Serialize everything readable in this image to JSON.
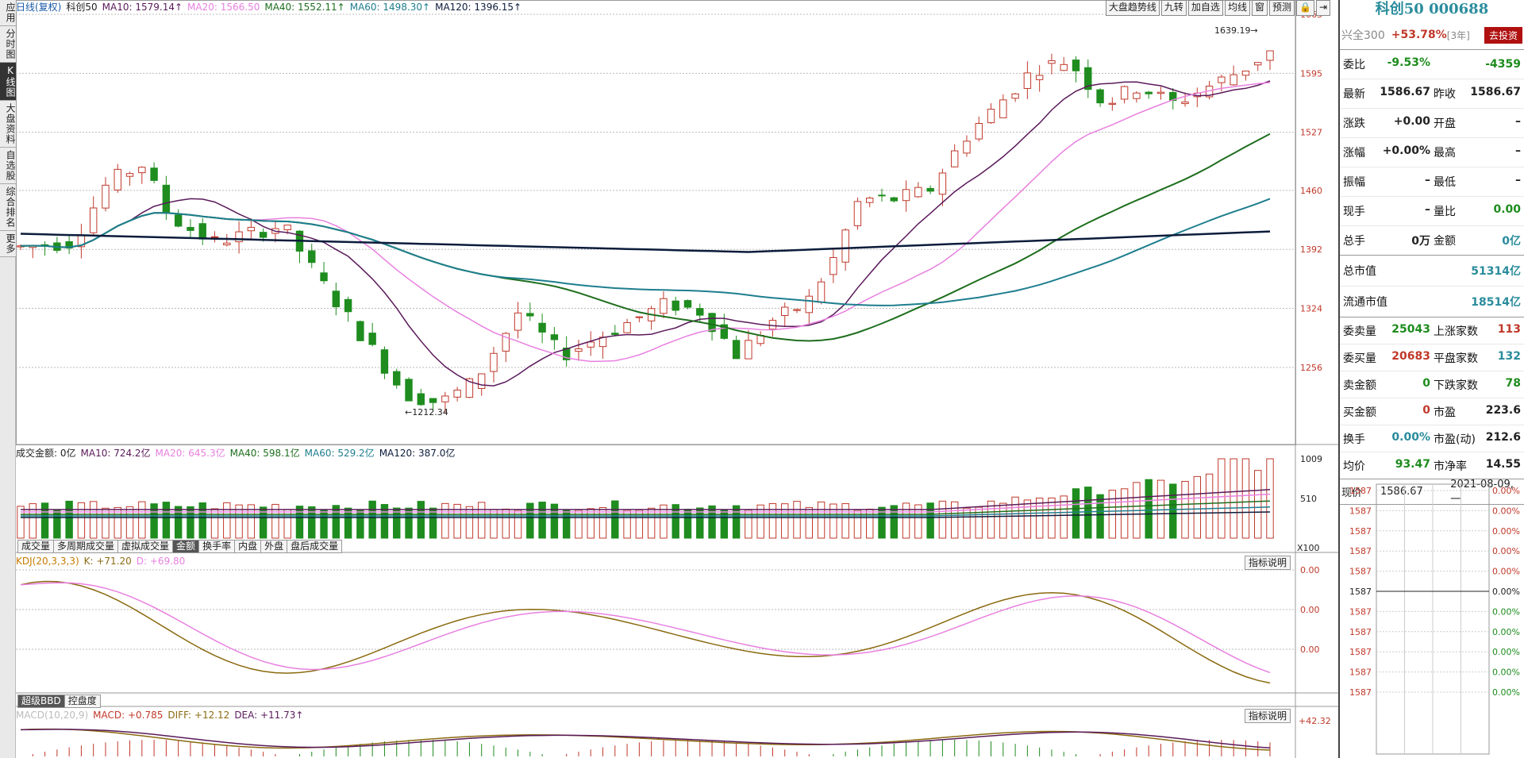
{
  "leftnav": [
    {
      "label": "应用",
      "active": false
    },
    {
      "label": "分时图",
      "active": false
    },
    {
      "label": "K线图",
      "active": true
    },
    {
      "label": "大盘资料",
      "active": false
    },
    {
      "label": "自选股",
      "active": false
    },
    {
      "label": "综合排名",
      "active": false
    },
    {
      "label": "更多",
      "active": false
    }
  ],
  "main_legend": {
    "period": "日线(复权)",
    "name": "科创50",
    "ma10": "MA10: 1579.14↑",
    "ma20": "MA20: 1566.50",
    "ma40": "MA40: 1552.11↑",
    "ma60": "MA60: 1498.30↑",
    "ma120": "MA120: 1396.15↑"
  },
  "toolbar": [
    "大盘趋势线",
    "九转",
    "加自选",
    "均线",
    "窗",
    "预测"
  ],
  "price_axis": [
    "1663",
    "1595",
    "1527",
    "1460",
    "1392",
    "1324",
    "1256"
  ],
  "annotations": {
    "high": "1639.19",
    "low": "1212.34"
  },
  "volume_legend": {
    "label": "成交金额: 0亿",
    "ma10": "MA10: 724.2亿",
    "ma20": "MA20: 645.3亿",
    "ma40": "MA40: 598.1亿",
    "ma60": "MA60: 529.2亿",
    "ma120": "MA120: 387.0亿"
  },
  "volume_axis": [
    "1009",
    "510"
  ],
  "volume_unit": "X100",
  "volume_tabs": [
    {
      "label": "成交量",
      "active": false
    },
    {
      "label": "多周期成交量",
      "active": false
    },
    {
      "label": "虚拟成交量",
      "active": false
    },
    {
      "label": "金额",
      "active": true
    },
    {
      "label": "换手率",
      "active": false
    },
    {
      "label": "内盘",
      "active": false
    },
    {
      "label": "外盘",
      "active": false
    },
    {
      "label": "盘后成交量",
      "active": false
    }
  ],
  "kdj_legend": {
    "label": "KDJ(20,3,3,3)",
    "k": "K: +71.20",
    "d": "D: +69.80"
  },
  "kdj_axis": [
    "0.00",
    "0.00",
    "0.00"
  ],
  "explain_label": "指标说明",
  "kdj_tabs": [
    {
      "label": "超级BBD",
      "active": true
    },
    {
      "label": "控盘度",
      "active": false
    }
  ],
  "macd_legend": {
    "label": "MACD(10,20,9)",
    "macd": "MACD: +0.785",
    "diff": "DIFF: +12.12",
    "dea": "DEA: +11.73↑"
  },
  "macd_axis": "+42.32",
  "colors": {
    "up": "#c0392b",
    "down": "#1e8c1e",
    "ma10": "#5a1a5a",
    "ma20": "#e880e0",
    "ma40": "#1e6e1e",
    "ma60": "#1e7e8e",
    "ma120": "#0c1c3c"
  },
  "panel": {
    "title": "科创50 000688",
    "row0": {
      "l1": "兴全300",
      "v1": "+53.78%",
      "v1b": "[3年]",
      "btn": "去投资"
    },
    "rows": [
      {
        "l1": "委比",
        "v1": "-9.53%",
        "c1": "green",
        "l2": "",
        "v2": "-4359",
        "c2": "green"
      },
      {
        "l1": "最新",
        "v1": "1586.67",
        "c1": "",
        "l2": "昨收",
        "v2": "1586.67",
        "c2": ""
      },
      {
        "l1": "涨跌",
        "v1": "+0.00",
        "c1": "",
        "l2": "开盘",
        "v2": "–",
        "c2": ""
      },
      {
        "l1": "涨幅",
        "v1": "+0.00%",
        "c1": "",
        "l2": "最高",
        "v2": "–",
        "c2": ""
      },
      {
        "l1": "振幅",
        "v1": "–",
        "c1": "",
        "l2": "最低",
        "v2": "–",
        "c2": ""
      },
      {
        "l1": "现手",
        "v1": "–",
        "c1": "",
        "l2": "量比",
        "v2": "0.00",
        "c2": "green"
      },
      {
        "l1": "总手",
        "v1": "0万",
        "c1": "",
        "l2": "金额",
        "v2": "0亿",
        "c2": "teal"
      }
    ],
    "caps": [
      {
        "l": "总市值",
        "v": "51314亿"
      },
      {
        "l": "流通市值",
        "v": "18514亿"
      }
    ],
    "rows2": [
      {
        "l1": "委卖量",
        "v1": "25043",
        "c1": "green",
        "l2": "上涨家数",
        "v2": "113",
        "c2": "red"
      },
      {
        "l1": "委买量",
        "v1": "20683",
        "c1": "red",
        "l2": "平盘家数",
        "v2": "132",
        "c2": "teal"
      },
      {
        "l1": "卖金额",
        "v1": "0",
        "c1": "green",
        "l2": "下跌家数",
        "v2": "78",
        "c2": "green"
      },
      {
        "l1": "买金额",
        "v1": "0",
        "c1": "red",
        "l2": "市盈",
        "v2": "223.6",
        "c2": ""
      },
      {
        "l1": "换手",
        "v1": "0.00%",
        "c1": "teal",
        "l2": "市盈(动)",
        "v2": "212.6",
        "c2": ""
      },
      {
        "l1": "均价",
        "v1": "93.47",
        "c1": "green",
        "l2": "市净率",
        "v2": "14.55",
        "c2": ""
      }
    ],
    "current": {
      "label": "现价",
      "value": "1586.67",
      "date": "2021-08-09,一"
    },
    "mini_left": [
      "1587",
      "1587",
      "1587",
      "1587",
      "1587",
      "1587",
      "1587",
      "1587",
      "1587",
      "1587",
      "1587"
    ],
    "mini_right": [
      "0.00%",
      "0.00%",
      "0.00%",
      "0.00%",
      "0.00%",
      "0.00%",
      "0.00%",
      "0.00%",
      "0.00%",
      "0.00%",
      "0.00%"
    ]
  }
}
